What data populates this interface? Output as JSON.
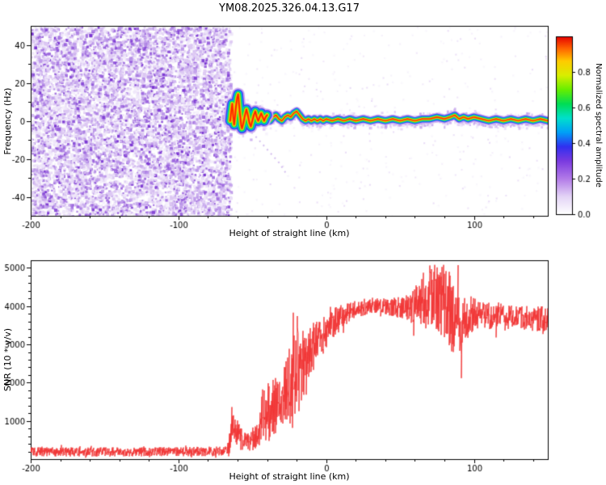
{
  "title": "YM08.2025.326.04.13.G17",
  "chart_data": [
    {
      "type": "heatmap",
      "title": "YM08.2025.326.04.13.G17",
      "xlabel": "Height of straight line (km)",
      "ylabel": "Frequency (Hz)",
      "xlim": [
        -200,
        150
      ],
      "ylim": [
        -50,
        50
      ],
      "xticks": [
        -200,
        -100,
        0,
        100
      ],
      "yticks": [
        -40,
        -20,
        0,
        20,
        40
      ],
      "grid": false,
      "frame_color": "#000000",
      "colorbar": {
        "label": "Normalized spectral amplitude",
        "ticks": [
          0.0,
          0.2,
          0.4,
          0.6,
          0.8
        ],
        "range": [
          0,
          1
        ],
        "colormap": [
          [
            0.0,
            "#ffffff"
          ],
          [
            0.1,
            "#e3d3f6"
          ],
          [
            0.2,
            "#b27ae8"
          ],
          [
            0.3,
            "#7a3ae0"
          ],
          [
            0.38,
            "#3030f0"
          ],
          [
            0.46,
            "#00a0f8"
          ],
          [
            0.54,
            "#00e0cc"
          ],
          [
            0.62,
            "#00dd55"
          ],
          [
            0.7,
            "#66ee00"
          ],
          [
            0.78,
            "#d8ee00"
          ],
          [
            0.86,
            "#ffcc00"
          ],
          [
            0.93,
            "#ff6600"
          ],
          [
            1.0,
            "#e60000"
          ]
        ]
      },
      "noise_region": {
        "x_start": -200,
        "x_end": -65,
        "description": "dense incoherent purple speckle noise over full frequency range",
        "palette": [
          [
            "#efe7fa",
            0.34
          ],
          [
            "#dcc7f3",
            0.27
          ],
          [
            "#bd99ea",
            0.2
          ],
          [
            "#9a63dd",
            0.12
          ],
          [
            "#7a35d2",
            0.07
          ]
        ]
      },
      "signal_trace": {
        "description": "high-amplitude narrow spectral ridge near 0 Hz from -65 km to 150 km with strong frequency wiggles between -65 and -40 km",
        "points": [
          [
            -65,
            0
          ],
          [
            -64.3,
            5
          ],
          [
            -63.6,
            9
          ],
          [
            -63,
            3
          ],
          [
            -62.3,
            -2
          ],
          [
            -61.6,
            3
          ],
          [
            -61,
            8
          ],
          [
            -60.3,
            12
          ],
          [
            -59.6,
            14
          ],
          [
            -59,
            9
          ],
          [
            -58.3,
            3
          ],
          [
            -57.6,
            -2
          ],
          [
            -57,
            -4
          ],
          [
            -56,
            -1
          ],
          [
            -55,
            3
          ],
          [
            -54,
            6
          ],
          [
            -53,
            3
          ],
          [
            -52,
            -1
          ],
          [
            -51,
            -3
          ],
          [
            -50,
            0
          ],
          [
            -49,
            3
          ],
          [
            -48,
            5
          ],
          [
            -47,
            2
          ],
          [
            -46,
            0
          ],
          [
            -45,
            2
          ],
          [
            -44,
            4
          ],
          [
            -43,
            2
          ],
          [
            -42,
            0
          ],
          [
            -41,
            2
          ],
          [
            -40,
            3
          ],
          [
            -39,
            1
          ],
          [
            -38,
            0
          ],
          [
            -36,
            2
          ],
          [
            -34,
            3
          ],
          [
            -32,
            1
          ],
          [
            -30,
            0
          ],
          [
            -28,
            2
          ],
          [
            -26,
            3
          ],
          [
            -24,
            2
          ],
          [
            -22,
            4
          ],
          [
            -20,
            5
          ],
          [
            -18,
            3
          ],
          [
            -16,
            1
          ],
          [
            -14,
            0
          ],
          [
            -12,
            1
          ],
          [
            -10,
            0
          ],
          [
            -8,
            1
          ],
          [
            -6,
            0
          ],
          [
            -4,
            1
          ],
          [
            -2,
            0
          ],
          [
            0,
            1
          ],
          [
            4,
            0
          ],
          [
            8,
            1
          ],
          [
            12,
            0
          ],
          [
            16,
            1
          ],
          [
            20,
            0
          ],
          [
            25,
            1
          ],
          [
            30,
            0
          ],
          [
            35,
            1
          ],
          [
            40,
            0
          ],
          [
            45,
            1
          ],
          [
            50,
            0
          ],
          [
            55,
            1
          ],
          [
            60,
            0
          ],
          [
            65,
            1
          ],
          [
            70,
            1
          ],
          [
            75,
            2
          ],
          [
            80,
            1
          ],
          [
            84,
            2
          ],
          [
            87,
            3
          ],
          [
            90,
            1
          ],
          [
            93,
            2
          ],
          [
            96,
            1
          ],
          [
            100,
            2
          ],
          [
            105,
            1
          ],
          [
            110,
            0
          ],
          [
            115,
            1
          ],
          [
            120,
            0
          ],
          [
            125,
            1
          ],
          [
            130,
            0
          ],
          [
            135,
            1
          ],
          [
            140,
            0
          ],
          [
            145,
            1
          ],
          [
            150,
            0
          ]
        ]
      },
      "faint_secondary_trace": {
        "description": "weak diagonal multipath streak descending to the right",
        "points": [
          [
            -56,
            -2
          ],
          [
            -48,
            -8
          ],
          [
            -40,
            -15
          ],
          [
            -32,
            -22
          ],
          [
            -26,
            -29
          ]
        ]
      }
    },
    {
      "type": "line",
      "xlabel": "Height of straight line (km)",
      "ylabel": "SNR (10 * v/v)",
      "xlim": [
        -200,
        150
      ],
      "ylim": [
        0,
        5200
      ],
      "xticks": [
        -200,
        -100,
        0,
        100
      ],
      "yticks": [
        1000,
        2000,
        3000,
        4000,
        5000
      ],
      "grid": false,
      "color": "#f03030",
      "series": [
        {
          "name": "SNR",
          "description": "noisy red trace: flat noise floor ~200 until -66 km, sharp rise with spiky bursts between -65 and -10 km, plateau near 3900-4100 from 20 to 60 km, large oscillations 2800-5050 between 60 and 95 km, settling near 3700 to 150 km",
          "envelope_x_mean_amp": [
            [
              -200,
              190,
              120
            ],
            [
              -150,
              190,
              120
            ],
            [
              -100,
              195,
              120
            ],
            [
              -80,
              200,
              125
            ],
            [
              -70,
              205,
              130
            ],
            [
              -67,
              230,
              150
            ],
            [
              -65.5,
              420,
              350
            ],
            [
              -64,
              800,
              420
            ],
            [
              -62,
              900,
              400
            ],
            [
              -60,
              700,
              380
            ],
            [
              -58,
              560,
              320
            ],
            [
              -56,
              480,
              260
            ],
            [
              -54,
              430,
              220
            ],
            [
              -52,
              470,
              250
            ],
            [
              -50,
              520,
              300
            ],
            [
              -48,
              560,
              320
            ],
            [
              -46,
              620,
              360
            ],
            [
              -44,
              850,
              550
            ],
            [
              -42.5,
              1500,
              950
            ],
            [
              -41,
              1000,
              620
            ],
            [
              -39.5,
              1250,
              800
            ],
            [
              -38,
              1150,
              700
            ],
            [
              -36.5,
              1400,
              800
            ],
            [
              -35,
              1300,
              750
            ],
            [
              -33,
              1500,
              800
            ],
            [
              -31,
              1450,
              750
            ],
            [
              -29,
              1650,
              820
            ],
            [
              -27,
              1800,
              900
            ],
            [
              -25,
              1700,
              900
            ],
            [
              -23,
              2000,
              1100
            ],
            [
              -21,
              2200,
              1300
            ],
            [
              -19.5,
              2400,
              1400
            ],
            [
              -18,
              2300,
              1000
            ],
            [
              -16,
              2500,
              950
            ],
            [
              -14,
              2650,
              850
            ],
            [
              -12,
              2750,
              750
            ],
            [
              -10,
              2850,
              700
            ],
            [
              -8,
              2950,
              650
            ],
            [
              -6,
              3050,
              600
            ],
            [
              -4,
              3150,
              550
            ],
            [
              -2,
              3250,
              500
            ],
            [
              0,
              3350,
              480
            ],
            [
              3,
              3500,
              420
            ],
            [
              6,
              3600,
              380
            ],
            [
              9,
              3680,
              340
            ],
            [
              12,
              3760,
              300
            ],
            [
              15,
              3830,
              270
            ],
            [
              18,
              3890,
              240
            ],
            [
              21,
              3930,
              220
            ],
            [
              25,
              3960,
              210
            ],
            [
              30,
              3990,
              200
            ],
            [
              35,
              4010,
              200
            ],
            [
              40,
              4000,
              220
            ],
            [
              45,
              3980,
              250
            ],
            [
              50,
              3960,
              280
            ],
            [
              55,
              3950,
              340
            ],
            [
              60,
              4000,
              480
            ],
            [
              63,
              4080,
              650
            ],
            [
              66,
              4150,
              750
            ],
            [
              69,
              4250,
              820
            ],
            [
              72,
              4300,
              850
            ],
            [
              75,
              4250,
              880
            ],
            [
              78,
              4150,
              930
            ],
            [
              81,
              4050,
              960
            ],
            [
              84,
              3900,
              1000
            ],
            [
              86.5,
              3550,
              900
            ],
            [
              89,
              3850,
              800
            ],
            [
              91.5,
              3400,
              850
            ],
            [
              94,
              3650,
              650
            ],
            [
              97,
              3750,
              520
            ],
            [
              100,
              3800,
              440
            ],
            [
              104,
              3760,
              400
            ],
            [
              108,
              3720,
              380
            ],
            [
              112,
              3740,
              360
            ],
            [
              116,
              3760,
              340
            ],
            [
              120,
              3750,
              330
            ],
            [
              125,
              3710,
              320
            ],
            [
              130,
              3700,
              320
            ],
            [
              135,
              3680,
              325
            ],
            [
              140,
              3660,
              330
            ],
            [
              145,
              3690,
              340
            ],
            [
              150,
              3680,
              350
            ]
          ]
        }
      ]
    }
  ]
}
